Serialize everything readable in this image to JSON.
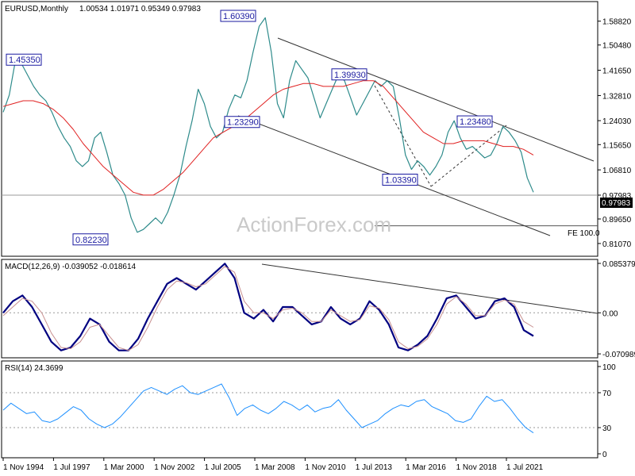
{
  "chart_data": [
    {
      "panel": "price",
      "type": "line",
      "title": "EURUSD,Monthly",
      "ohlc_text": "1.00534 1.01971 0.95349 0.97983",
      "ylim": [
        0.78,
        1.64
      ],
      "yticks": [
        0.8107,
        0.8965,
        0.9798,
        1.0682,
        1.1565,
        1.2403,
        1.3281,
        1.4165,
        1.5048,
        1.5882
      ],
      "ytick_labels": [
        "0.81070",
        "0.89650",
        "0.97983",
        "1.06810",
        "1.15650",
        "1.24030",
        "1.32810",
        "1.41650",
        "1.50480",
        "1.58820"
      ],
      "current_price": 0.97983,
      "current_label": "0.97983",
      "series": [
        {
          "name": "",
          "color": "#2e8b8b",
          "values": [
            1.27,
            1.33,
            1.45,
            1.44,
            1.4,
            1.36,
            1.33,
            1.31,
            1.27,
            1.22,
            1.18,
            1.15,
            1.1,
            1.08,
            1.1,
            1.18,
            1.2,
            1.13,
            1.05,
            1.02,
            0.98,
            0.9,
            0.85,
            0.86,
            0.88,
            0.9,
            0.88,
            0.92,
            0.98,
            1.05,
            1.15,
            1.24,
            1.35,
            1.3,
            1.22,
            1.18,
            1.2,
            1.28,
            1.33,
            1.32,
            1.38,
            1.48,
            1.57,
            1.6,
            1.48,
            1.3,
            1.25,
            1.38,
            1.45,
            1.42,
            1.39,
            1.32,
            1.25,
            1.3,
            1.35,
            1.4,
            1.38,
            1.32,
            1.26,
            1.3,
            1.34,
            1.38,
            1.36,
            1.38,
            1.36,
            1.25,
            1.12,
            1.07,
            1.1,
            1.08,
            1.05,
            1.08,
            1.12,
            1.2,
            1.24,
            1.18,
            1.14,
            1.15,
            1.13,
            1.11,
            1.12,
            1.16,
            1.22,
            1.2,
            1.17,
            1.13,
            1.04,
            0.99
          ]
        },
        {
          "name": "",
          "color": "#e02020",
          "values": [
            1.29,
            1.3,
            1.31,
            1.31,
            1.3,
            1.28,
            1.25,
            1.21,
            1.16,
            1.12,
            1.08,
            1.05,
            1.02,
            0.99,
            0.98,
            0.98,
            1.0,
            1.03,
            1.06,
            1.1,
            1.14,
            1.18,
            1.2,
            1.22,
            1.24,
            1.27,
            1.3,
            1.33,
            1.35,
            1.36,
            1.37,
            1.37,
            1.36,
            1.36,
            1.36,
            1.37,
            1.38,
            1.38,
            1.36,
            1.32,
            1.28,
            1.24,
            1.2,
            1.18,
            1.16,
            1.16,
            1.17,
            1.17,
            1.17,
            1.16,
            1.15,
            1.15,
            1.14,
            1.12
          ]
        }
      ],
      "annotations": [
        {
          "label": "1.45350",
          "value": 1.4535
        },
        {
          "label": "0.82230",
          "value": 0.8223
        },
        {
          "label": "1.60390",
          "value": 1.6039
        },
        {
          "label": "1.23290",
          "value": 1.2329
        },
        {
          "label": "1.39930",
          "value": 1.3993
        },
        {
          "label": "1.03390",
          "value": 1.0339
        },
        {
          "label": "1.23480",
          "value": 1.2348
        }
      ],
      "fe_label": "FE 100.0",
      "fe_value": 0.8725,
      "watermark": "ActionForex.com"
    },
    {
      "panel": "macd",
      "type": "line",
      "title": "MACD(12,26,9) -0.039052 -0.018614",
      "ylim": [
        -0.0709,
        0.0854
      ],
      "yticks": [
        0.085379,
        0.0,
        -0.070989
      ],
      "ytick_labels": [
        "0.085379",
        "0.00",
        "-0.070989"
      ],
      "series": [
        {
          "name": "",
          "color": "#000080",
          "values": [
            0.0,
            0.02,
            0.03,
            0.01,
            -0.02,
            -0.05,
            -0.065,
            -0.06,
            -0.04,
            -0.01,
            -0.02,
            -0.05,
            -0.065,
            -0.065,
            -0.045,
            -0.01,
            0.02,
            0.05,
            0.06,
            0.05,
            0.04,
            0.055,
            0.07,
            0.085,
            0.06,
            0.0,
            -0.01,
            0.005,
            -0.015,
            0.01,
            0.01,
            -0.005,
            -0.02,
            -0.015,
            0.01,
            -0.01,
            -0.02,
            -0.01,
            0.02,
            0.005,
            -0.02,
            -0.06,
            -0.065,
            -0.055,
            -0.04,
            -0.01,
            0.025,
            0.03,
            0.01,
            -0.01,
            -0.005,
            0.02,
            0.025,
            0.01,
            -0.03,
            -0.04
          ]
        },
        {
          "name": "",
          "color": "#c89090",
          "values": [
            -0.005,
            0.01,
            0.025,
            0.02,
            0.0,
            -0.035,
            -0.06,
            -0.062,
            -0.05,
            -0.025,
            -0.02,
            -0.04,
            -0.06,
            -0.065,
            -0.055,
            -0.025,
            0.01,
            0.04,
            0.055,
            0.052,
            0.045,
            0.05,
            0.065,
            0.08,
            0.07,
            0.02,
            0.0,
            0.0,
            -0.01,
            0.005,
            0.008,
            0.0,
            -0.015,
            -0.015,
            0.005,
            -0.005,
            -0.015,
            -0.012,
            0.012,
            0.008,
            -0.012,
            -0.05,
            -0.062,
            -0.058,
            -0.045,
            -0.02,
            0.015,
            0.028,
            0.015,
            -0.005,
            -0.005,
            0.015,
            0.022,
            0.015,
            -0.015,
            -0.025
          ]
        }
      ]
    },
    {
      "panel": "rsi",
      "type": "line",
      "title": "RSI(14) 24.3699",
      "ylim": [
        0,
        100
      ],
      "yticks": [
        100,
        70,
        30,
        0
      ],
      "ytick_labels": [
        "100",
        "70",
        "30",
        "0"
      ],
      "series": [
        {
          "name": "",
          "color": "#1e90ff",
          "values": [
            50,
            58,
            52,
            46,
            48,
            38,
            36,
            40,
            47,
            54,
            50,
            40,
            34,
            30,
            34,
            42,
            52,
            62,
            72,
            76,
            72,
            68,
            74,
            78,
            70,
            68,
            72,
            76,
            80,
            64,
            44,
            52,
            56,
            50,
            46,
            52,
            60,
            56,
            50,
            56,
            48,
            52,
            54,
            62,
            50,
            40,
            30,
            34,
            38,
            46,
            52,
            56,
            54,
            60,
            62,
            54,
            50,
            46,
            38,
            36,
            40,
            54,
            66,
            60,
            62,
            52,
            40,
            30,
            24
          ]
        }
      ],
      "xlabels": [
        "1 Nov 1994",
        "1 Jul 1997",
        "1 Mar 2000",
        "1 Nov 2002",
        "1 Jul 2005",
        "1 Mar 2008",
        "1 Nov 2010",
        "1 Jul 2013",
        "1 Mar 2016",
        "1 Nov 2018",
        "1 Jul 2021"
      ]
    }
  ]
}
